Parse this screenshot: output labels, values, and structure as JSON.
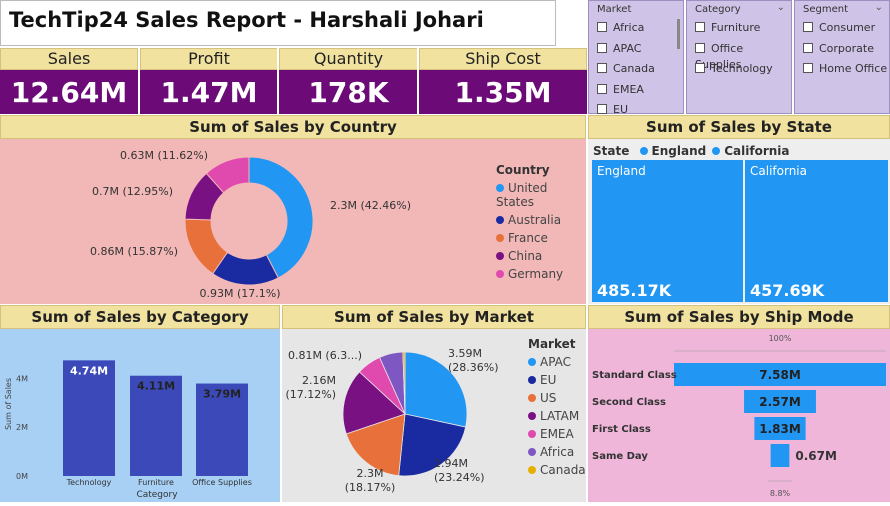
{
  "title": "TechTip24 Sales Report - Harshali Johari",
  "kpis": [
    {
      "label": "Sales",
      "value": "12.64M"
    },
    {
      "label": "Profit",
      "value": "1.47M"
    },
    {
      "label": "Quantity",
      "value": "178K"
    },
    {
      "label": "Ship Cost",
      "value": "1.35M"
    }
  ],
  "slicers": {
    "market": {
      "title": "Market",
      "items": [
        "Africa",
        "APAC",
        "Canada",
        "EMEA",
        "EU"
      ]
    },
    "category": {
      "title": "Category",
      "items": [
        "Furniture",
        "Office Supplies",
        "Technology"
      ]
    },
    "segment": {
      "title": "Segment",
      "items": [
        "Consumer",
        "Corporate",
        "Home Office"
      ]
    }
  },
  "colors": {
    "kpi_bg": "#6c0a78",
    "header_bg": "#f1e2a0",
    "slicer_bg": "#cfc3e8",
    "country_bg": "#f2b8b8",
    "state_bg": "#eeeeee",
    "category_bg": "#a8d0f5",
    "market_bg": "#e6e6e6",
    "shipmode_bg": "#efb6da",
    "blue": "#2196f3",
    "navy": "#1a2aa0",
    "orange": "#e8703a",
    "purple": "#7a1183",
    "pink": "#e04aae",
    "lavender": "#7e57c2",
    "gold": "#e5b000",
    "bar": "#3b4ab8"
  },
  "country": {
    "title": "Sum of Sales by Country",
    "legend_title": "Country",
    "chart_data": {
      "type": "pie",
      "categories": [
        "United States",
        "Australia",
        "France",
        "China",
        "Germany"
      ],
      "values": [
        2.3,
        0.93,
        0.86,
        0.7,
        0.63
      ],
      "labels": [
        "2.3M (42.46%)",
        "0.93M (17.1%)",
        "0.86M (15.87%)",
        "0.7M (12.95%)",
        "0.63M (11.62%)"
      ],
      "donut": true
    }
  },
  "state": {
    "title": "Sum of Sales by State",
    "legend_title": "State",
    "chart_data": {
      "type": "table",
      "categories": [
        "England",
        "California"
      ],
      "values": [
        485.17,
        457.69
      ],
      "value_labels": [
        "485.17K",
        "457.69K"
      ]
    }
  },
  "category": {
    "title": "Sum of Sales by Category",
    "chart_data": {
      "type": "bar",
      "categories": [
        "Technology",
        "Furniture",
        "Office Supplies"
      ],
      "values": [
        4.74,
        4.11,
        3.79
      ],
      "value_labels": [
        "4.74M",
        "4.11M",
        "3.79M"
      ],
      "ylim": [
        0,
        5
      ],
      "yticks": [
        "0M",
        "2M",
        "4M"
      ],
      "xlabel": "Category",
      "ylabel": "Sum of Sales"
    }
  },
  "market": {
    "title": "Sum of Sales by Market",
    "legend_title": "Market",
    "chart_data": {
      "type": "pie",
      "categories": [
        "APAC",
        "EU",
        "US",
        "LATAM",
        "EMEA",
        "Africa",
        "Canada"
      ],
      "values": [
        3.59,
        2.94,
        2.3,
        2.16,
        0.81,
        0.78,
        0.07
      ],
      "labels": [
        "3.59M (28.36%)",
        "2.94M (23.24%)",
        "2.3M (18.17%)",
        "2.16M (17.12%)",
        "0.81M (6.3...)",
        "",
        ""
      ]
    }
  },
  "shipmode": {
    "title": "Sum of Sales by Ship Mode",
    "top_label": "100%",
    "bottom_label": "8.8%",
    "chart_data": {
      "type": "bar",
      "categories": [
        "Standard Class",
        "Second Class",
        "First Class",
        "Same Day"
      ],
      "values": [
        7.58,
        2.57,
        1.83,
        0.67
      ],
      "value_labels": [
        "7.58M",
        "2.57M",
        "1.83M",
        "0.67M"
      ]
    }
  }
}
